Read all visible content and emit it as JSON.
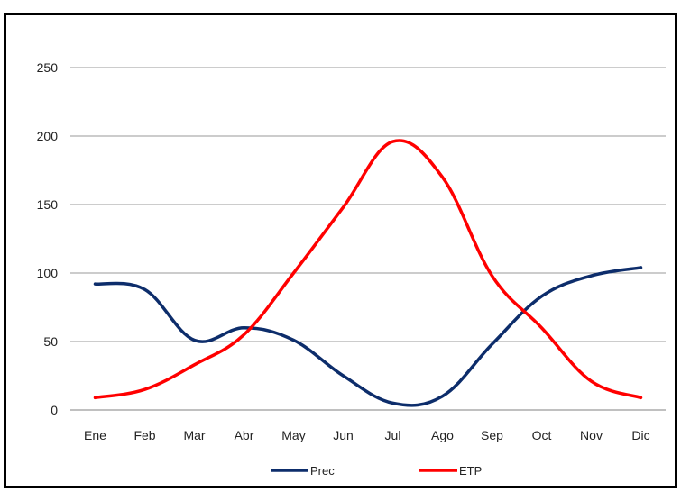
{
  "chart_data": {
    "type": "line",
    "categories": [
      "Ene",
      "Feb",
      "Mar",
      "Abr",
      "May",
      "Jun",
      "Jul",
      "Ago",
      "Sep",
      "Oct",
      "Nov",
      "Dic"
    ],
    "series": [
      {
        "name": "Prec",
        "color": "#0d2d6b",
        "values": [
          92,
          88,
          51,
          60,
          51,
          25,
          5,
          10,
          48,
          83,
          98,
          104
        ]
      },
      {
        "name": "ETP",
        "color": "#ff0000",
        "values": [
          9,
          15,
          33,
          55,
          100,
          148,
          196,
          170,
          98,
          60,
          21,
          9
        ]
      }
    ],
    "ylim": [
      0,
      250
    ],
    "yticks": [
      0,
      50,
      100,
      150,
      200,
      250
    ],
    "grid": true,
    "legend": "bottom"
  }
}
